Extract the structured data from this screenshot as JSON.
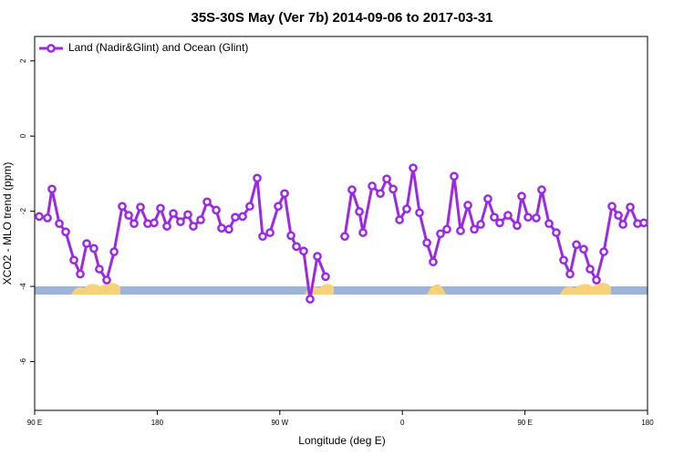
{
  "chart_data": {
    "type": "line",
    "title": "35S-30S May (Ver 7b)   2014-09-06 to 2017-03-31",
    "x_label": "Longitude (deg E)",
    "y_label": "XCO2 - MLO trend (ppm)",
    "xlim": [
      90,
      540
    ],
    "ylim": [
      -7.3,
      2.65
    ],
    "xticks": [
      {
        "value": 90,
        "label": "90 E"
      },
      {
        "value": 180,
        "label": "180"
      },
      {
        "value": 270,
        "label": "90 W"
      },
      {
        "value": 360,
        "label": "0"
      },
      {
        "value": 450,
        "label": "90 E"
      },
      {
        "value": 540,
        "label": "180"
      }
    ],
    "yticks": [
      2,
      0,
      -2,
      -4,
      -6
    ],
    "legend_position": "top-left",
    "x": [
      93.3,
      99.4,
      102.7,
      108.1,
      112.8,
      118.8,
      123.5,
      128.2,
      133.5,
      137.5,
      142.9,
      148.3,
      154.3,
      159.0,
      163.0,
      167.7,
      173.0,
      177.7,
      182.4,
      187.1,
      191.8,
      197.1,
      202.5,
      206.5,
      211.9,
      216.6,
      223.3,
      227.3,
      232.6,
      237.3,
      242.7,
      248.0,
      253.4,
      257.4,
      262.8,
      268.8,
      273.5,
      278.2,
      282.2,
      287.5,
      292.2,
      297.6,
      303.6,
      310.0,
      317.7,
      323.0,
      328.4,
      331.1,
      337.8,
      343.8,
      348.5,
      353.2,
      357.9,
      363.2,
      367.9,
      372.6,
      378.0,
      382.6,
      388.0,
      392.7,
      398.0,
      402.7,
      408.1,
      412.8,
      417.5,
      422.8,
      427.5,
      431.5,
      437.5,
      444.2,
      447.6,
      452.3,
      458.3,
      462.3,
      467.7,
      473.0,
      478.4,
      483.1,
      487.8,
      493.1,
      497.8,
      502.5,
      507.9,
      513.9,
      518.6,
      522.0,
      527.3,
      532.7,
      537.3
    ],
    "series": [
      {
        "name": "Land (Nadir&Glint) and Ocean (Glint)",
        "color": "#9a2be2",
        "values": [
          -2.14,
          -2.18,
          -1.41,
          -2.33,
          -2.55,
          -3.3,
          -3.67,
          -2.86,
          -2.99,
          -3.54,
          -3.83,
          -3.08,
          -1.87,
          -2.11,
          -2.33,
          -1.89,
          -2.33,
          -2.31,
          -1.92,
          -2.4,
          -2.06,
          -2.28,
          -2.09,
          -2.4,
          -2.23,
          -1.75,
          -1.97,
          -2.45,
          -2.48,
          -2.16,
          -2.14,
          -1.87,
          -1.12,
          -2.67,
          -2.57,
          -1.87,
          -1.53,
          -2.65,
          -2.94,
          -3.06,
          -4.34,
          -3.2,
          -3.74,
          null,
          -2.67,
          -1.43,
          -2.01,
          -2.57,
          -1.33,
          -1.53,
          -1.14,
          -1.41,
          -2.23,
          -1.94,
          -0.85,
          -2.04,
          -2.84,
          -3.35,
          -2.6,
          -2.48,
          -1.07,
          -2.52,
          -1.84,
          -2.48,
          -2.35,
          -1.67,
          -2.16,
          -2.31,
          -2.11,
          -2.38,
          -1.6,
          -2.16,
          -2.18,
          -1.43,
          -2.33,
          -2.57,
          -3.3,
          -3.67,
          -2.89,
          -3.01,
          -3.54,
          -3.83,
          -3.08,
          -1.87,
          -2.11,
          -2.35,
          -1.89,
          -2.33,
          -2.31
        ]
      }
    ]
  }
}
